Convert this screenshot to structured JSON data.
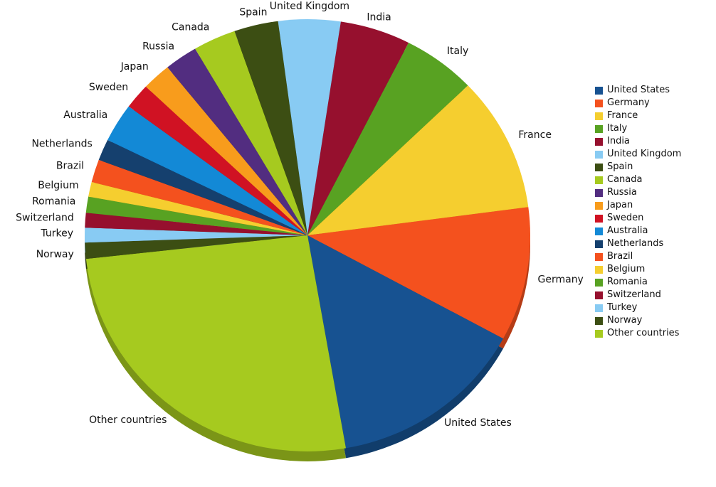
{
  "figure": {
    "background_color": "#ffffff",
    "text_color": "#111111"
  },
  "chart_data": {
    "type": "pie",
    "title": "",
    "unit": "percent",
    "legend_position": "right",
    "direction": "clockwise",
    "start_angle_from_top_deg": -7.6,
    "has_3d_depth": true,
    "slices": [
      {
        "name": "United States",
        "value": 14.3,
        "color": "#175291"
      },
      {
        "name": "Germany",
        "value": 10.0,
        "color": "#F4511E"
      },
      {
        "name": "France",
        "value": 10.1,
        "color": "#F5CE2F"
      },
      {
        "name": "Italy",
        "value": 5.3,
        "color": "#58A222"
      },
      {
        "name": "India",
        "value": 5.1,
        "color": "#96102E"
      },
      {
        "name": "United Kingdom",
        "value": 4.5,
        "color": "#88CBF3"
      },
      {
        "name": "Spain",
        "value": 3.2,
        "color": "#3C4E13"
      },
      {
        "name": "Canada",
        "value": 3.1,
        "color": "#A6CA1F"
      },
      {
        "name": "Russia",
        "value": 2.4,
        "color": "#522D80"
      },
      {
        "name": "Japan",
        "value": 2.1,
        "color": "#F89C1C"
      },
      {
        "name": "Sweden",
        "value": 1.9,
        "color": "#D01223"
      },
      {
        "name": "Australia",
        "value": 2.9,
        "color": "#1389D6"
      },
      {
        "name": "Netherlands",
        "value": 1.6,
        "color": "#15406E"
      },
      {
        "name": "Brazil",
        "value": 1.7,
        "color": "#F4511E"
      },
      {
        "name": "Belgium",
        "value": 1.1,
        "color": "#F5CE2F"
      },
      {
        "name": "Romania",
        "value": 1.2,
        "color": "#58A222"
      },
      {
        "name": "Switzerland",
        "value": 1.1,
        "color": "#96102E"
      },
      {
        "name": "Turkey",
        "value": 1.1,
        "color": "#88CBF3"
      },
      {
        "name": "Norway",
        "value": 1.2,
        "color": "#3C4E13"
      },
      {
        "name": "Other countries",
        "value": 26.0,
        "color": "#A6CA1F"
      }
    ],
    "draw_order": [
      "United Kingdom",
      "India",
      "Italy",
      "France",
      "Germany",
      "United States",
      "Other countries",
      "Norway",
      "Turkey",
      "Switzerland",
      "Romania",
      "Belgium",
      "Brazil",
      "Netherlands",
      "Australia",
      "Sweden",
      "Japan",
      "Russia",
      "Canada",
      "Spain"
    ]
  },
  "legend": {
    "title": ""
  }
}
